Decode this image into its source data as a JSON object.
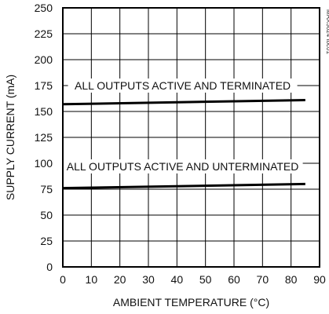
{
  "chart_data": {
    "type": "line",
    "title": "",
    "xlabel": "AMBIENT TEMPERATURE (°C)",
    "ylabel": "SUPPLY CURRENT (mA)",
    "xlim": [
      0,
      90
    ],
    "ylim": [
      0,
      250
    ],
    "x_ticks": [
      0,
      10,
      20,
      30,
      40,
      50,
      60,
      70,
      80,
      90
    ],
    "y_ticks": [
      0,
      25,
      50,
      75,
      100,
      125,
      150,
      175,
      200,
      225,
      250
    ],
    "grid": true,
    "series": [
      {
        "name": "ALL OUTPUTS ACTIVE AND TERMINATED",
        "x": [
          0,
          85
        ],
        "y": [
          157,
          161
        ]
      },
      {
        "name": "ALL OUTPUTS ACTIVE AND UNTERMINATED",
        "x": [
          0,
          85
        ],
        "y": [
          76,
          80
        ]
      }
    ],
    "chart_id": "MAX3624 toc01",
    "colors": {
      "line": "#000000",
      "grid": "#000000",
      "text": "#111111"
    }
  }
}
